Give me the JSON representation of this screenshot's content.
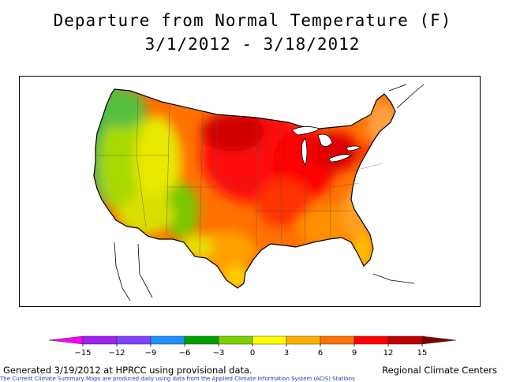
{
  "header": {
    "title": "Departure from Normal Temperature (F)",
    "date_range": "3/1/2012 - 3/18/2012"
  },
  "legend": {
    "ticks": [
      "-15",
      "-12",
      "-9",
      "-6",
      "-3",
      "0",
      "3",
      "6",
      "9",
      "12",
      "15"
    ],
    "colors": [
      "#ff00ff",
      "#a020f0",
      "#8040ff",
      "#1e90ff",
      "#00a000",
      "#7cd000",
      "#ffff00",
      "#ffb000",
      "#ff7000",
      "#ff0000",
      "#c00000",
      "#800000"
    ]
  },
  "footer": {
    "generated": "Generated 3/19/2012 at HPRCC using provisional data.",
    "source": "Regional Climate Centers",
    "note": "The Current Climate Summary Maps are produced daily using data from the Applied Climate Information System (ACIS) Stations"
  }
}
